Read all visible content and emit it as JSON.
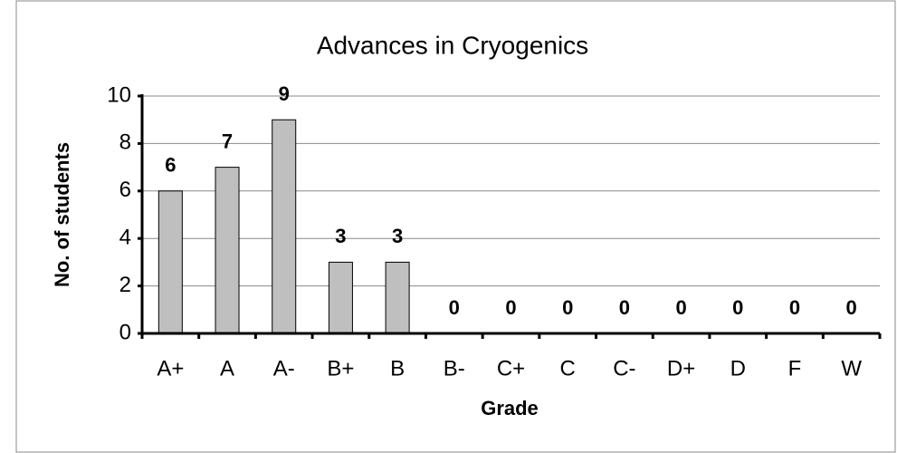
{
  "chart_data": {
    "type": "bar",
    "title": "Advances in Cryogenics",
    "x_label": "Grade",
    "y_label": "No. of students",
    "categories": [
      "A+",
      "A",
      "A-",
      "B+",
      "B",
      "B-",
      "C+",
      "C",
      "C-",
      "D+",
      "D",
      "F",
      "W"
    ],
    "values": [
      6,
      7,
      9,
      3,
      3,
      0,
      0,
      0,
      0,
      0,
      0,
      0,
      0
    ],
    "color": "#bfbfbf",
    "ylim": [
      0,
      10
    ],
    "yticks": [
      0,
      2,
      4,
      6,
      8,
      10
    ],
    "grid": true,
    "data_labels": true
  }
}
